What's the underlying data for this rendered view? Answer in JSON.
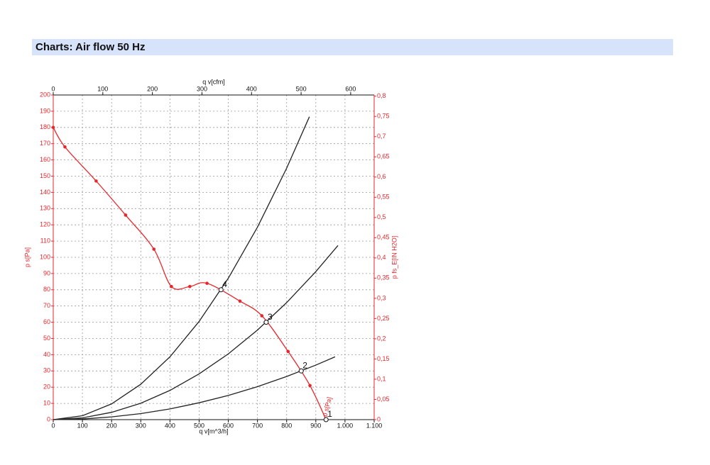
{
  "header": {
    "title": "Charts: Air flow 50 Hz"
  },
  "chart_data": {
    "type": "line",
    "x_label": "q v[m^3/h]",
    "x2_label": "q v[cfm]",
    "y_label": "p s[Pa]",
    "y2_label": "p fs_E[IN H2O]",
    "curve_label": "p s[Pa]",
    "xlim": [
      0,
      1100
    ],
    "xticks": [
      0,
      100,
      200,
      300,
      400,
      500,
      600,
      700,
      800,
      900,
      {
        "value": 1000,
        "label": "1.000"
      },
      {
        "value": 1100,
        "label": "1.100"
      }
    ],
    "x2lim": [
      0,
      647.4
    ],
    "x2ticks": [
      0,
      100,
      200,
      300,
      400,
      500,
      600
    ],
    "ylim": [
      0,
      200
    ],
    "yticks": [
      0,
      10,
      20,
      30,
      40,
      50,
      60,
      70,
      80,
      90,
      100,
      110,
      120,
      130,
      140,
      150,
      160,
      170,
      180,
      190,
      200
    ],
    "y2lim": [
      0,
      0.803
    ],
    "y2ticks": [
      0,
      {
        "value": 0.05,
        "label": "0,05"
      },
      {
        "value": 0.1,
        "label": "0,1"
      },
      {
        "value": 0.15,
        "label": "0,15"
      },
      {
        "value": 0.2,
        "label": "0,2"
      },
      {
        "value": 0.25,
        "label": "0,25"
      },
      {
        "value": 0.3,
        "label": "0,3"
      },
      {
        "value": 0.35,
        "label": "0,35"
      },
      {
        "value": 0.4,
        "label": "0,4"
      },
      {
        "value": 0.45,
        "label": "0,45"
      },
      {
        "value": 0.5,
        "label": "0,5"
      },
      {
        "value": 0.55,
        "label": "0,55"
      },
      {
        "value": 0.6,
        "label": "0,6"
      },
      {
        "value": 0.65,
        "label": "0,65"
      },
      {
        "value": 0.7,
        "label": "0,7"
      },
      {
        "value": 0.75,
        "label": "0,75"
      },
      {
        "value": 0.8,
        "label": "0,8"
      }
    ],
    "grid": true,
    "series": [
      {
        "color": "#e8262b",
        "markers": true,
        "smooth": true,
        "x": [
          0,
          40,
          147,
          248,
          345,
          405,
          468,
          527,
          640,
          715,
          805,
          880,
          935
        ],
        "values": [
          180,
          168,
          147,
          126,
          105,
          82,
          82,
          84,
          73,
          64,
          42,
          21,
          0
        ]
      },
      {
        "color": "#222222",
        "x": [
          0,
          100,
          200,
          300,
          400,
          500,
          600,
          700,
          800,
          878
        ],
        "values": [
          0,
          2.4,
          9.7,
          21.8,
          38.7,
          60.5,
          87.1,
          118.6,
          154.9,
          186.6
        ]
      },
      {
        "color": "#222222",
        "x": [
          0,
          100,
          200,
          300,
          400,
          500,
          600,
          700,
          800,
          900,
          976
        ],
        "values": [
          0,
          1.1,
          4.5,
          10.1,
          18,
          28.2,
          40.5,
          55.2,
          72.1,
          91.2,
          107.3
        ]
      },
      {
        "color": "#222222",
        "x": [
          0,
          100,
          200,
          300,
          400,
          500,
          600,
          700,
          800,
          900,
          966
        ],
        "values": [
          0,
          0.4,
          1.7,
          3.7,
          6.6,
          10.4,
          14.9,
          20.3,
          26.6,
          33.6,
          38.7
        ]
      }
    ],
    "points": [
      {
        "label": "1",
        "x": 935,
        "y": 0
      },
      {
        "label": "2",
        "x": 850,
        "y": 30
      },
      {
        "label": "3",
        "x": 730,
        "y": 60
      },
      {
        "label": "4",
        "x": 575,
        "y": 80
      }
    ]
  }
}
